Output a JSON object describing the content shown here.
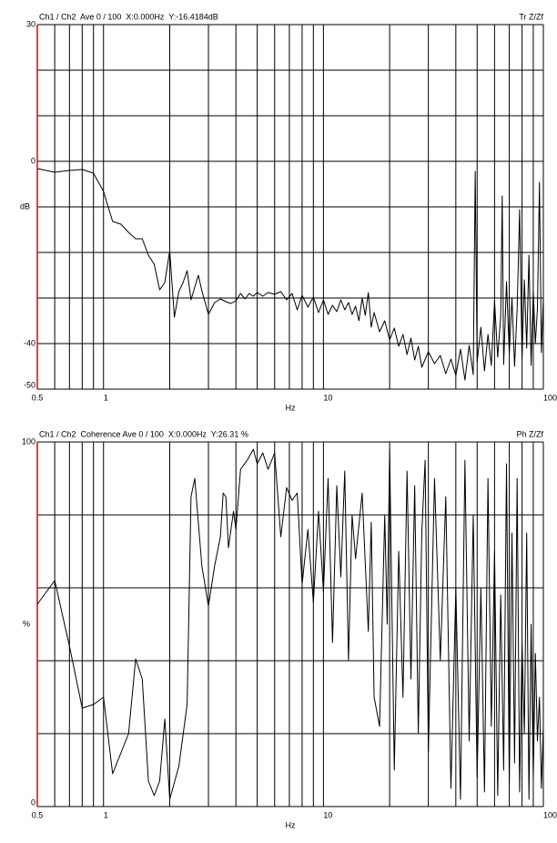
{
  "chart_data": [
    {
      "type": "line",
      "title": "Ch1 / Ch2  Ave 0 / 100  X:0.000Hz  Y:-16.4184dB",
      "title_right": "Tr Z/Zf",
      "xlabel": "Hz",
      "ylabel": "dB",
      "xscale": "log",
      "xlim": [
        0.5,
        100
      ],
      "xticks": [
        0.5,
        1,
        10,
        100
      ],
      "xgrid": [
        0.6,
        0.7,
        0.8,
        0.9,
        1,
        2,
        3,
        4,
        5,
        6,
        7,
        8,
        9,
        10,
        20,
        30,
        40,
        50,
        60,
        70,
        80,
        90
      ],
      "ylim": [
        -50,
        30
      ],
      "yticks": [
        -50,
        -40,
        0,
        30
      ],
      "ygrid": [
        -40,
        -30,
        -20,
        -10,
        0,
        10,
        20,
        30
      ],
      "color": "#000000",
      "x": [
        0.5,
        0.6,
        0.7,
        0.8,
        0.9,
        1.0,
        1.1,
        1.2,
        1.3,
        1.4,
        1.5,
        1.6,
        1.7,
        1.8,
        1.9,
        2.0,
        2.1,
        2.2,
        2.3,
        2.4,
        2.5,
        2.6,
        2.7,
        2.8,
        3.0,
        3.2,
        3.4,
        3.6,
        3.8,
        4.0,
        4.2,
        4.4,
        4.6,
        4.8,
        5.0,
        5.3,
        5.6,
        6.0,
        6.4,
        6.8,
        7.2,
        7.6,
        8.0,
        8.5,
        9.0,
        9.5,
        10,
        10.5,
        11,
        11.5,
        12,
        12.5,
        13,
        13.5,
        14,
        14.5,
        15,
        15.5,
        16,
        16.5,
        17,
        18,
        19,
        20,
        21,
        22,
        23,
        24,
        25,
        26,
        27,
        28,
        30,
        32,
        34,
        36,
        38,
        40,
        42,
        44,
        46,
        48,
        49,
        50,
        52,
        54,
        56,
        58,
        60,
        62,
        64,
        65,
        66,
        68,
        70,
        72,
        74,
        76,
        78,
        80,
        82,
        84,
        86,
        88,
        90,
        92,
        94,
        96,
        98,
        100
      ],
      "values": [
        -1.6,
        -2.4,
        -2,
        -1.8,
        -2.6,
        -6.6,
        -13.2,
        -13.8,
        -15.6,
        -17,
        -17,
        -20.6,
        -22.6,
        -28.2,
        -26.6,
        -19.6,
        -34.2,
        -28.6,
        -26.6,
        -24,
        -30.4,
        -27.6,
        -25,
        -28.4,
        -33.6,
        -31,
        -30.2,
        -30.8,
        -31.2,
        -30.6,
        -29,
        -30.2,
        -29,
        -29.6,
        -28.8,
        -29.6,
        -28.8,
        -29.2,
        -28.6,
        -30.4,
        -29,
        -32.6,
        -29.4,
        -32,
        -29.8,
        -33.2,
        -30.4,
        -33.6,
        -31.6,
        -33,
        -30.4,
        -32.6,
        -31,
        -33.6,
        -31.8,
        -35,
        -30,
        -33.8,
        -28.8,
        -36.4,
        -33.2,
        -37.4,
        -35,
        -39.2,
        -36.6,
        -40.6,
        -38,
        -42.4,
        -38.8,
        -43.6,
        -40.6,
        -45.2,
        -41.8,
        -44.4,
        -42.6,
        -46.6,
        -43.4,
        -47,
        -41.2,
        -48,
        -40.4,
        -46.8,
        -2.2,
        -44,
        -36.4,
        -46,
        -38,
        -44.8,
        -30.6,
        -43,
        -34,
        -7.6,
        -44.6,
        -26.4,
        -42.2,
        -30,
        -45,
        -32.4,
        -10.6,
        -43.4,
        -26,
        -41,
        -20.6,
        -44.8,
        -28.4,
        -40,
        -32.2,
        -4.6,
        -42,
        -30
      ]
    },
    {
      "type": "line",
      "title": "Ch1 / Ch2  Coherence Ave 0 / 100  X:0.000Hz  Y:26.31 %",
      "title_right": "Ph Z/Zf",
      "xlabel": "Hz",
      "ylabel": "%",
      "xscale": "log",
      "xlim": [
        0.5,
        100
      ],
      "xticks": [
        0.5,
        1,
        10,
        100
      ],
      "xgrid": [
        0.6,
        0.7,
        0.8,
        0.9,
        1,
        2,
        3,
        4,
        5,
        6,
        7,
        8,
        9,
        10,
        20,
        30,
        40,
        50,
        60,
        70,
        80,
        90
      ],
      "ylim": [
        0,
        100
      ],
      "yticks": [
        0,
        100
      ],
      "ygrid": [
        20,
        40,
        60,
        80,
        100
      ],
      "color": "#000000",
      "x": [
        0.5,
        0.6,
        0.7,
        0.8,
        0.9,
        1.0,
        1.1,
        1.3,
        1.4,
        1.5,
        1.6,
        1.7,
        1.8,
        1.9,
        2.0,
        2.2,
        2.4,
        2.5,
        2.6,
        2.8,
        3.0,
        3.2,
        3.4,
        3.5,
        3.6,
        3.7,
        3.9,
        4.0,
        4.2,
        4.5,
        4.8,
        5.0,
        5.3,
        5.6,
        6.0,
        6.4,
        6.8,
        7.2,
        7.6,
        8.0,
        8.5,
        9.0,
        9.5,
        10,
        10.5,
        11,
        11.5,
        12,
        12.5,
        13,
        13.5,
        14,
        15,
        16,
        16.5,
        17,
        18,
        19,
        19.5,
        20,
        21,
        22,
        23,
        24,
        25,
        26,
        27,
        28,
        29,
        30,
        32,
        34,
        36,
        38,
        40,
        42,
        44,
        46,
        48,
        50,
        52,
        54,
        56,
        58,
        60,
        62,
        64,
        66,
        68,
        70,
        72,
        74,
        76,
        78,
        80,
        82,
        84,
        86,
        88,
        90,
        92,
        94,
        96,
        98,
        100
      ],
      "values": [
        55.5,
        62,
        44,
        27,
        28,
        30,
        9,
        20,
        40.5,
        35,
        7,
        3,
        7,
        24,
        2,
        11,
        28,
        85,
        90,
        66,
        55,
        66,
        74,
        86,
        85,
        71,
        81,
        76,
        92.5,
        95,
        98,
        94,
        97,
        92.5,
        97,
        74,
        87.5,
        84,
        86,
        61,
        76,
        56,
        81,
        59,
        90,
        45,
        88,
        63,
        92,
        40,
        80,
        68,
        86,
        48,
        78,
        30,
        22,
        80,
        50,
        98,
        10,
        70,
        30,
        92,
        35,
        88,
        20,
        75,
        95,
        15,
        90,
        40,
        85,
        5,
        60,
        2,
        95,
        18,
        80,
        8,
        60,
        4,
        90,
        22,
        70,
        3,
        58,
        10,
        94,
        6,
        75,
        12,
        90,
        4,
        45,
        20,
        75,
        2,
        50,
        8,
        42,
        18,
        30,
        5,
        22
      ]
    }
  ]
}
